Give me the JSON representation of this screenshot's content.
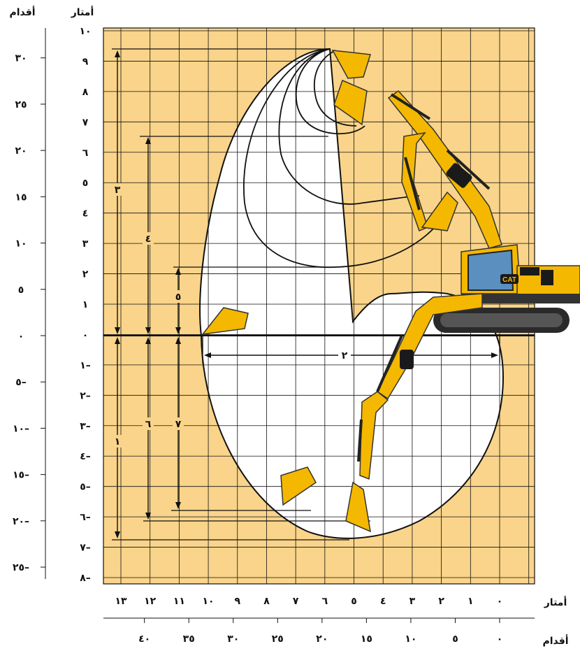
{
  "headers": {
    "feet_left": "أقدام",
    "meters_left": "أمتار",
    "meters_bottom": "أمتار",
    "feet_bottom": "أقدام"
  },
  "axes": {
    "meters_y": [
      "١٠",
      "٩",
      "٨",
      "٧",
      "٦",
      "٥",
      "٤",
      "٣",
      "٢",
      "١",
      "٠",
      "١–",
      "٢–",
      "٣–",
      "٤–",
      "٥–",
      "٦–",
      "٧–",
      "٨–"
    ],
    "feet_y": [
      "٣٠",
      "٢٥",
      "٢٠",
      "١٥",
      "١٠",
      "٥",
      "٠",
      "٥–",
      "١٠–",
      "١٥–",
      "٢٠–",
      "٢٥–"
    ],
    "meters_x": [
      "١٣",
      "١٢",
      "١١",
      "١٠",
      "٩",
      "٨",
      "٧",
      "٦",
      "٥",
      "٤",
      "٣",
      "٢",
      "١",
      "٠"
    ],
    "feet_x": [
      "٤٠",
      "٣٥",
      "٣٠",
      "٢٥",
      "٢٠",
      "١٥",
      "١٠",
      "٥",
      "٠"
    ]
  },
  "callouts": [
    "١",
    "٢",
    "٣",
    "٤",
    "٥",
    "٦",
    "٧"
  ],
  "colors": {
    "grid_fill": "#f9d48a",
    "envelope_fill": "#ffffff",
    "line": "#111111",
    "machine_yellow": "#f5b800",
    "machine_dark": "#2a2a2a"
  },
  "icons": {
    "excavator": "excavator-icon",
    "bucket": "bucket-icon",
    "cat_logo": "cat-logo-icon"
  },
  "logo_text": "CAT"
}
